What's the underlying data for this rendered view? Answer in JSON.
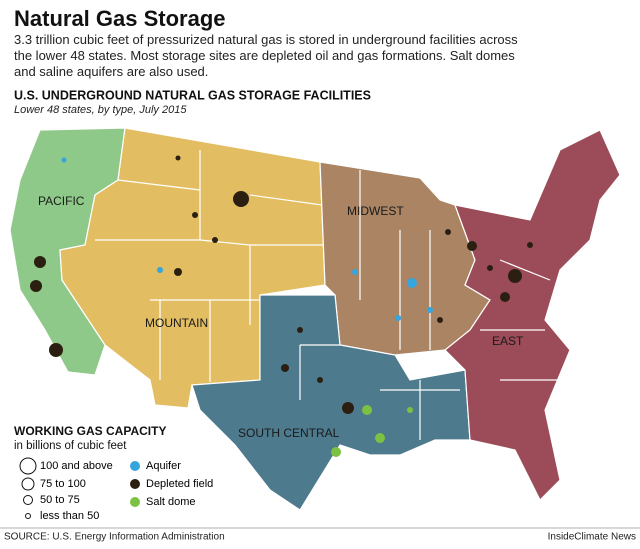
{
  "header": {
    "title": "Natural Gas Storage",
    "description": "3.3 trillion cubic feet of pressurized natural gas is stored in underground facilities across the lower 48 states. Most storage sites are depleted oil and gas formations. Salt domes and saline aquifers are also used."
  },
  "map": {
    "title": "U.S. UNDERGROUND NATURAL GAS STORAGE FACILITIES",
    "subtitle": "Lower 48 states, by type, July 2015",
    "regions": [
      {
        "label": "PACIFIC"
      },
      {
        "label": "MOUNTAIN"
      },
      {
        "label": "MIDWEST"
      },
      {
        "label": "SOUTH CENTRAL"
      },
      {
        "label": "EAST"
      }
    ]
  },
  "legend": {
    "title": "WORKING GAS CAPACITY",
    "subtitle": "in billions of cubic feet",
    "sizes": [
      {
        "label": "100 and above"
      },
      {
        "label": "75 to 100"
      },
      {
        "label": "50 to 75"
      },
      {
        "label": "less than 50"
      }
    ],
    "types": [
      {
        "label": "Aquifer"
      },
      {
        "label": "Depleted field"
      },
      {
        "label": "Salt dome"
      }
    ]
  },
  "footer": {
    "source": "SOURCE: U.S. Energy Information Administration",
    "credit": "InsideClimate News"
  }
}
